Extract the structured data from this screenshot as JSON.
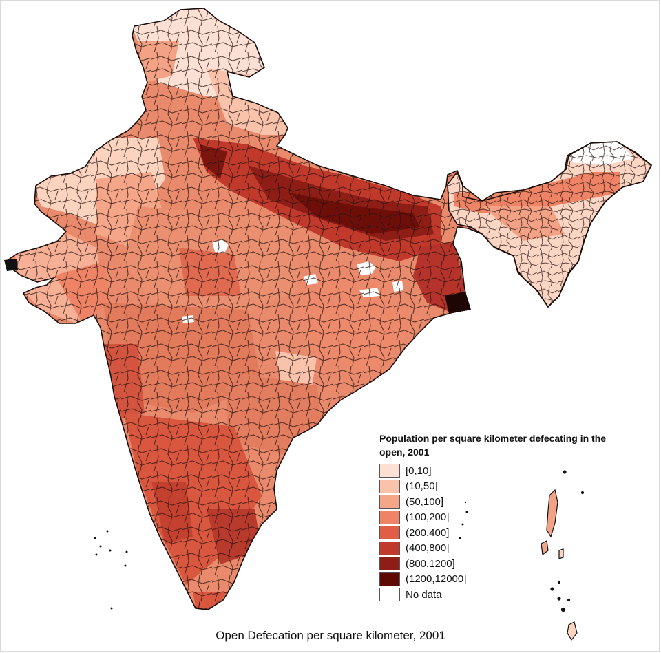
{
  "legend": {
    "title": "Population per square kilometer defecating in the open, 2001",
    "items": [
      {
        "label": "[0,10]",
        "color": "#fbe0d3"
      },
      {
        "label": "(10,50]",
        "color": "#f9c3ab"
      },
      {
        "label": "(50,100]",
        "color": "#f5a688"
      },
      {
        "label": "(100,200]",
        "color": "#ee8465"
      },
      {
        "label": "(200,400]",
        "color": "#df5e45"
      },
      {
        "label": "(400,800]",
        "color": "#c0392b"
      },
      {
        "label": "(800,1200]",
        "color": "#8e1d16"
      },
      {
        "label": "(1200,12000]",
        "color": "#5f0905"
      },
      {
        "label": "No data",
        "color": "#ffffff"
      }
    ]
  },
  "caption": "Open Defecation per square kilometer, 2001"
}
